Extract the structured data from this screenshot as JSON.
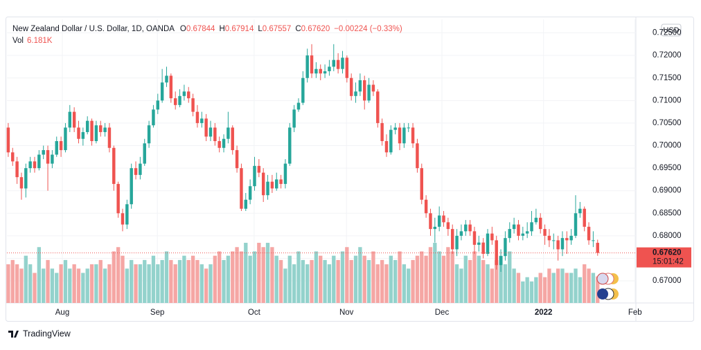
{
  "chart_data": {
    "type": "candlestick",
    "title": "New Zealand Dollar / U.S. Dollar, 1D, OANDA",
    "legend_items": [
      {
        "key": "O",
        "text": "0.67844"
      },
      {
        "key": "H",
        "text": "0.67914"
      },
      {
        "key": "L",
        "text": "0.67557"
      },
      {
        "key": "C",
        "text": "0.67620"
      }
    ],
    "change_text": "−0.00224 (−0.33%)",
    "volume_key": "Vol",
    "volume_text": "6.181K",
    "currency": "USD",
    "last_price": {
      "value": 0.6762,
      "label": "0.67620"
    },
    "countdown": "15:01:42",
    "brand": "TradingView",
    "up_color": "#26a69a",
    "down_color": "#ef5350",
    "volume_up_color": "#93d2cc",
    "volume_down_color": "#f5a6a4",
    "grid": true,
    "xlim": [
      -0.3,
      142.7
    ],
    "xticks": [
      {
        "value": 12.3,
        "label": "Aug"
      },
      {
        "value": 33.9,
        "label": "Sep"
      },
      {
        "value": 55.9,
        "label": "Oct"
      },
      {
        "value": 76.9,
        "label": "Nov"
      },
      {
        "value": 98.6,
        "label": "Dec"
      },
      {
        "value": 121.7,
        "label": "2022"
      },
      {
        "value": 142.5,
        "label": "Feb"
      }
    ],
    "ylim": [
      0.6651,
      0.728
    ],
    "yticks": [
      {
        "value": 0.67,
        "label": "0.67000"
      },
      {
        "value": 0.675,
        "label": "0.67500"
      },
      {
        "value": 0.68,
        "label": "0.68000"
      },
      {
        "value": 0.685,
        "label": "0.68500"
      },
      {
        "value": 0.69,
        "label": "0.69000"
      },
      {
        "value": 0.695,
        "label": "0.69500"
      },
      {
        "value": 0.7,
        "label": "0.70000"
      },
      {
        "value": 0.705,
        "label": "0.70500"
      },
      {
        "value": 0.71,
        "label": "0.71000"
      },
      {
        "value": 0.715,
        "label": "0.71500"
      },
      {
        "value": 0.72,
        "label": "0.72000"
      },
      {
        "value": 0.725,
        "label": "0.72500"
      }
    ],
    "volume_lim": [
      0,
      66
    ],
    "open": [
      0.704,
      0.6985,
      0.6965,
      0.693,
      0.6905,
      0.695,
      0.6965,
      0.695,
      0.698,
      0.699,
      0.696,
      0.698,
      0.701,
      0.699,
      0.704,
      0.7075,
      0.704,
      0.7015,
      0.703,
      0.7055,
      0.701,
      0.7045,
      0.703,
      0.704,
      0.6995,
      0.6915,
      0.685,
      0.6825,
      0.687,
      0.695,
      0.6935,
      0.696,
      0.7005,
      0.7045,
      0.708,
      0.71,
      0.714,
      0.7155,
      0.7105,
      0.709,
      0.711,
      0.712,
      0.7105,
      0.7075,
      0.705,
      0.706,
      0.702,
      0.704,
      0.701,
      0.6995,
      0.7015,
      0.704,
      0.699,
      0.695,
      0.686,
      0.688,
      0.691,
      0.6955,
      0.694,
      0.689,
      0.692,
      0.6905,
      0.6925,
      0.6915,
      0.696,
      0.704,
      0.708,
      0.7095,
      0.715,
      0.72,
      0.716,
      0.717,
      0.716,
      0.7165,
      0.7175,
      0.719,
      0.717,
      0.7195,
      0.715,
      0.711,
      0.712,
      0.7145,
      0.71,
      0.7135,
      0.712,
      0.705,
      0.701,
      0.6985,
      0.7035,
      0.704,
      0.7005,
      0.704,
      0.704,
      0.7005,
      0.695,
      0.688,
      0.685,
      0.6815,
      0.682,
      0.6845,
      0.683,
      0.6815,
      0.677,
      0.68,
      0.681,
      0.6825,
      0.681,
      0.678,
      0.6785,
      0.676,
      0.6805,
      0.679,
      0.6735,
      0.6755,
      0.6795,
      0.6815,
      0.6825,
      0.68,
      0.6805,
      0.681,
      0.683,
      0.684,
      0.6815,
      0.68,
      0.679,
      0.679,
      0.677,
      0.6795,
      0.679,
      0.68,
      0.685,
      0.686,
      0.682,
      0.679,
      0.67844
    ],
    "high": [
      0.705,
      0.6995,
      0.6975,
      0.694,
      0.696,
      0.6975,
      0.6975,
      0.699,
      0.7,
      0.7,
      0.699,
      0.702,
      0.702,
      0.705,
      0.709,
      0.7085,
      0.7055,
      0.704,
      0.7065,
      0.706,
      0.7055,
      0.7055,
      0.705,
      0.705,
      0.7,
      0.692,
      0.686,
      0.688,
      0.696,
      0.6965,
      0.6975,
      0.7015,
      0.7055,
      0.709,
      0.7115,
      0.717,
      0.7175,
      0.716,
      0.712,
      0.7125,
      0.7135,
      0.713,
      0.7115,
      0.709,
      0.7075,
      0.707,
      0.7055,
      0.705,
      0.702,
      0.7025,
      0.7075,
      0.7045,
      0.7,
      0.696,
      0.6895,
      0.6925,
      0.6975,
      0.697,
      0.695,
      0.6935,
      0.6935,
      0.694,
      0.6935,
      0.697,
      0.705,
      0.709,
      0.7105,
      0.7165,
      0.7215,
      0.7225,
      0.7185,
      0.718,
      0.718,
      0.719,
      0.7225,
      0.7205,
      0.721,
      0.72,
      0.716,
      0.714,
      0.716,
      0.7155,
      0.715,
      0.7145,
      0.7125,
      0.706,
      0.7025,
      0.7045,
      0.705,
      0.705,
      0.705,
      0.705,
      0.705,
      0.7015,
      0.696,
      0.689,
      0.686,
      0.684,
      0.6865,
      0.6855,
      0.684,
      0.6825,
      0.6815,
      0.6825,
      0.6835,
      0.6835,
      0.682,
      0.68,
      0.6795,
      0.6815,
      0.682,
      0.68,
      0.677,
      0.681,
      0.683,
      0.684,
      0.6835,
      0.682,
      0.683,
      0.6855,
      0.686,
      0.685,
      0.6825,
      0.6815,
      0.6805,
      0.68,
      0.681,
      0.681,
      0.6815,
      0.689,
      0.6875,
      0.6865,
      0.683,
      0.681,
      0.67914
    ],
    "low": [
      0.6975,
      0.6955,
      0.6915,
      0.688,
      0.6885,
      0.694,
      0.694,
      0.6945,
      0.697,
      0.69,
      0.695,
      0.6975,
      0.6975,
      0.6985,
      0.703,
      0.703,
      0.7005,
      0.7,
      0.7025,
      0.7,
      0.7005,
      0.702,
      0.702,
      0.6985,
      0.69,
      0.684,
      0.681,
      0.6815,
      0.686,
      0.6925,
      0.6925,
      0.6955,
      0.6995,
      0.704,
      0.707,
      0.7095,
      0.713,
      0.7095,
      0.708,
      0.7085,
      0.71,
      0.7095,
      0.7065,
      0.704,
      0.704,
      0.701,
      0.701,
      0.7,
      0.6985,
      0.6985,
      0.7005,
      0.698,
      0.694,
      0.6855,
      0.6855,
      0.687,
      0.69,
      0.693,
      0.6875,
      0.688,
      0.6895,
      0.69,
      0.6905,
      0.6905,
      0.6955,
      0.703,
      0.7075,
      0.709,
      0.714,
      0.715,
      0.715,
      0.7145,
      0.715,
      0.7155,
      0.7165,
      0.716,
      0.716,
      0.714,
      0.71,
      0.7095,
      0.711,
      0.708,
      0.7095,
      0.711,
      0.704,
      0.7,
      0.6975,
      0.698,
      0.7025,
      0.699,
      0.6995,
      0.703,
      0.6995,
      0.694,
      0.687,
      0.684,
      0.68,
      0.6785,
      0.681,
      0.682,
      0.68,
      0.676,
      0.6755,
      0.679,
      0.68,
      0.68,
      0.676,
      0.6765,
      0.675,
      0.6755,
      0.678,
      0.6725,
      0.672,
      0.6745,
      0.6785,
      0.6805,
      0.679,
      0.679,
      0.6795,
      0.68,
      0.6825,
      0.6805,
      0.678,
      0.6775,
      0.677,
      0.6745,
      0.6755,
      0.676,
      0.678,
      0.6795,
      0.684,
      0.681,
      0.678,
      0.6775,
      0.67557
    ],
    "close": [
      0.6985,
      0.6965,
      0.693,
      0.6905,
      0.695,
      0.6965,
      0.695,
      0.698,
      0.699,
      0.696,
      0.698,
      0.701,
      0.699,
      0.704,
      0.7075,
      0.704,
      0.7015,
      0.703,
      0.7055,
      0.701,
      0.7045,
      0.703,
      0.704,
      0.6995,
      0.6915,
      0.685,
      0.6825,
      0.687,
      0.695,
      0.6935,
      0.696,
      0.7005,
      0.7045,
      0.708,
      0.71,
      0.714,
      0.7155,
      0.7105,
      0.709,
      0.711,
      0.712,
      0.7105,
      0.7075,
      0.705,
      0.706,
      0.702,
      0.704,
      0.701,
      0.6995,
      0.7015,
      0.704,
      0.699,
      0.695,
      0.686,
      0.688,
      0.691,
      0.6955,
      0.694,
      0.689,
      0.692,
      0.6905,
      0.6925,
      0.6915,
      0.696,
      0.704,
      0.708,
      0.7095,
      0.715,
      0.72,
      0.716,
      0.717,
      0.716,
      0.7165,
      0.7175,
      0.719,
      0.717,
      0.7195,
      0.715,
      0.711,
      0.712,
      0.7145,
      0.71,
      0.7135,
      0.712,
      0.705,
      0.701,
      0.6985,
      0.7035,
      0.704,
      0.7005,
      0.704,
      0.704,
      0.7005,
      0.695,
      0.688,
      0.685,
      0.6815,
      0.682,
      0.6845,
      0.683,
      0.6815,
      0.677,
      0.68,
      0.681,
      0.6825,
      0.681,
      0.678,
      0.6785,
      0.676,
      0.6805,
      0.679,
      0.6735,
      0.6755,
      0.6795,
      0.6815,
      0.6825,
      0.68,
      0.6805,
      0.681,
      0.683,
      0.684,
      0.6815,
      0.68,
      0.679,
      0.679,
      0.677,
      0.6795,
      0.679,
      0.68,
      0.685,
      0.686,
      0.682,
      0.679,
      0.679,
      0.6762
    ],
    "volume": [
      9,
      10,
      9,
      8,
      11,
      9,
      7,
      13,
      8,
      10,
      8,
      7,
      9,
      10,
      8,
      9,
      8,
      7,
      8,
      9,
      9,
      10,
      8,
      9,
      12,
      13,
      11,
      8,
      10,
      9,
      9,
      10,
      9,
      11,
      9,
      10,
      12,
      10,
      9,
      10,
      11,
      10,
      11,
      10,
      9,
      8,
      9,
      11,
      12,
      10,
      11,
      12,
      13,
      12,
      14,
      11,
      12,
      14,
      13,
      14,
      13,
      11,
      10,
      8,
      11,
      9,
      12,
      10,
      9,
      10,
      12,
      11,
      10,
      9,
      11,
      10,
      12,
      13,
      10,
      11,
      13,
      11,
      10,
      12,
      9,
      10,
      9,
      11,
      10,
      12,
      9,
      8,
      10,
      11,
      12,
      11,
      13,
      14,
      12,
      11,
      13,
      12,
      9,
      8,
      11,
      10,
      12,
      11,
      10,
      9,
      8,
      10,
      11,
      9,
      12,
      8,
      7,
      5,
      6,
      5,
      6,
      7,
      6,
      8,
      7,
      8,
      8,
      7,
      7,
      8,
      6,
      9,
      8,
      7,
      6.181
    ]
  }
}
